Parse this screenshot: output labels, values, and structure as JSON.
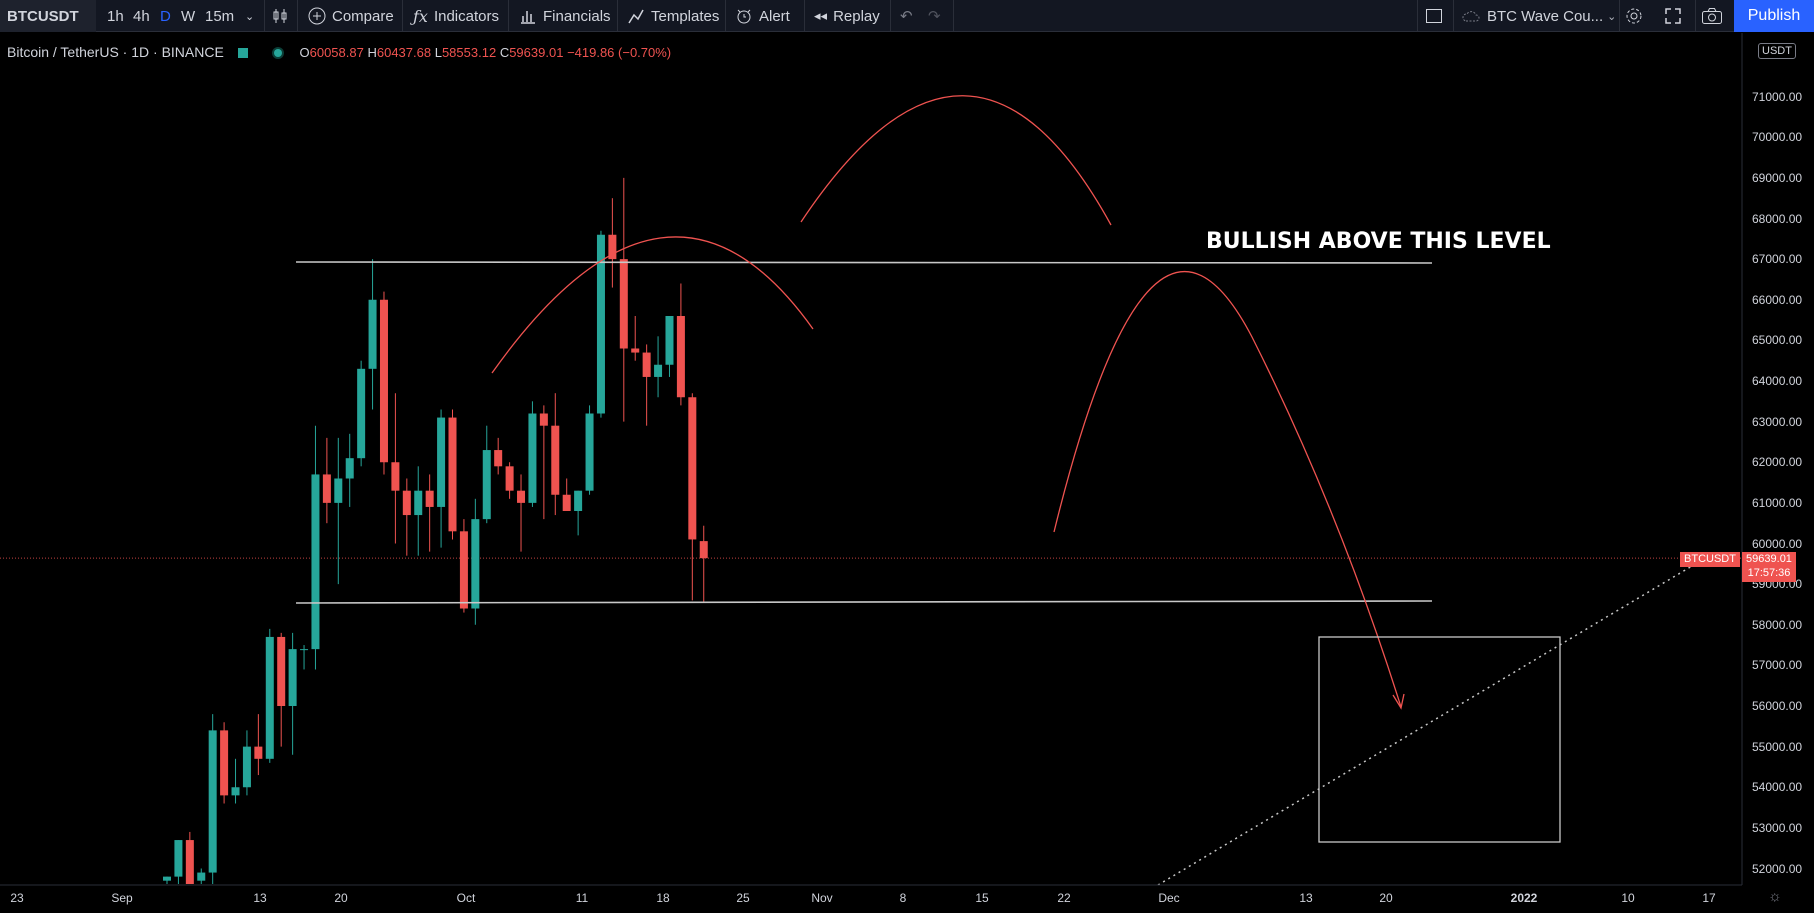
{
  "toolbar": {
    "symbol": "BTCUSDT",
    "intervals": [
      "1h",
      "4h",
      "D",
      "W",
      "15m"
    ],
    "active_interval": "D",
    "compare": "Compare",
    "indicators": "Indicators",
    "financials": "Financials",
    "templates": "Templates",
    "alert": "Alert",
    "replay": "Replay",
    "layout_name": "BTC Wave Cou...",
    "publish": "Publish"
  },
  "legend": {
    "title": "Bitcoin / TetherUS · 1D · BINANCE",
    "open_label": "O",
    "open": "60058.87",
    "high_label": "H",
    "high": "60437.68",
    "low_label": "L",
    "low": "58553.12",
    "close_label": "C",
    "close": "59639.01",
    "change": "−419.86 (−0.70%)"
  },
  "price_axis": {
    "currency": "USDT",
    "ticks": [
      "71000.00",
      "70000.00",
      "69000.00",
      "68000.00",
      "67000.00",
      "66000.00",
      "65000.00",
      "64000.00",
      "63000.00",
      "62000.00",
      "61000.00",
      "60000.00",
      "59000.00",
      "58000.00",
      "57000.00",
      "56000.00",
      "55000.00",
      "54000.00",
      "53000.00",
      "52000.00"
    ],
    "last_price": "59639.01",
    "countdown": "17:57:36",
    "symbol_tag": "BTCUSDT"
  },
  "time_axis": {
    "ticks": [
      "23",
      "Sep",
      "13",
      "20",
      "Oct",
      "11",
      "18",
      "25",
      "Nov",
      "8",
      "15",
      "22",
      "Dec",
      "13",
      "20",
      "2022",
      "10",
      "17"
    ]
  },
  "annotation": {
    "text": "BULLISH ABOVE THIS LEVEL"
  },
  "colors": {
    "up": "#26a69a",
    "down": "#ef5350",
    "accent": "#2962ff",
    "drawing": "#ef5350",
    "level_line": "#c8c8c8"
  },
  "chart_data": {
    "type": "candlestick",
    "symbol": "BTCUSDT",
    "interval": "1D",
    "ylim": [
      51600,
      72000
    ],
    "candles": [
      {
        "o": 51700,
        "h": 51800,
        "l": 51500,
        "c": 51800
      },
      {
        "o": 51800,
        "h": 52700,
        "l": 51600,
        "c": 52700
      },
      {
        "o": 52700,
        "h": 52900,
        "l": 51600,
        "c": 51600
      },
      {
        "o": 51700,
        "h": 52000,
        "l": 51500,
        "c": 51900
      },
      {
        "o": 51900,
        "h": 55800,
        "l": 51500,
        "c": 55400
      },
      {
        "o": 55400,
        "h": 55600,
        "l": 53600,
        "c": 53800
      },
      {
        "o": 53800,
        "h": 54700,
        "l": 53600,
        "c": 54000
      },
      {
        "o": 54000,
        "h": 55400,
        "l": 53800,
        "c": 55000
      },
      {
        "o": 55000,
        "h": 55800,
        "l": 54300,
        "c": 54700
      },
      {
        "o": 54700,
        "h": 57900,
        "l": 54600,
        "c": 57700
      },
      {
        "o": 57700,
        "h": 57800,
        "l": 55000,
        "c": 56000
      },
      {
        "o": 56000,
        "h": 57800,
        "l": 54800,
        "c": 57400
      },
      {
        "o": 57400,
        "h": 57500,
        "l": 56900,
        "c": 57400
      },
      {
        "o": 57400,
        "h": 62900,
        "l": 56900,
        "c": 61700
      },
      {
        "o": 61700,
        "h": 62600,
        "l": 60500,
        "c": 61000
      },
      {
        "o": 61000,
        "h": 62600,
        "l": 59000,
        "c": 61600
      },
      {
        "o": 61600,
        "h": 62700,
        "l": 60900,
        "c": 62100
      },
      {
        "o": 62100,
        "h": 64500,
        "l": 61900,
        "c": 64300
      },
      {
        "o": 64300,
        "h": 67000,
        "l": 63300,
        "c": 66000
      },
      {
        "o": 66000,
        "h": 66200,
        "l": 61700,
        "c": 62000
      },
      {
        "o": 62000,
        "h": 63700,
        "l": 60000,
        "c": 61300
      },
      {
        "o": 61300,
        "h": 61600,
        "l": 59700,
        "c": 60700
      },
      {
        "o": 60700,
        "h": 61900,
        "l": 59700,
        "c": 61300
      },
      {
        "o": 61300,
        "h": 61700,
        "l": 59800,
        "c": 60900
      },
      {
        "o": 60900,
        "h": 63300,
        "l": 59900,
        "c": 63100
      },
      {
        "o": 63100,
        "h": 63300,
        "l": 60100,
        "c": 60300
      },
      {
        "o": 60300,
        "h": 60600,
        "l": 58300,
        "c": 58400
      },
      {
        "o": 58400,
        "h": 61100,
        "l": 58000,
        "c": 60600
      },
      {
        "o": 60600,
        "h": 62900,
        "l": 60500,
        "c": 62300
      },
      {
        "o": 62300,
        "h": 62600,
        "l": 61700,
        "c": 61900
      },
      {
        "o": 61900,
        "h": 62000,
        "l": 61100,
        "c": 61300
      },
      {
        "o": 61300,
        "h": 61700,
        "l": 59800,
        "c": 61000
      },
      {
        "o": 61000,
        "h": 63500,
        "l": 60900,
        "c": 63200
      },
      {
        "o": 63200,
        "h": 63400,
        "l": 60600,
        "c": 62900
      },
      {
        "o": 62900,
        "h": 63700,
        "l": 60700,
        "c": 61200
      },
      {
        "o": 61200,
        "h": 61600,
        "l": 60800,
        "c": 60800
      },
      {
        "o": 60800,
        "h": 61300,
        "l": 60200,
        "c": 61300
      },
      {
        "o": 61300,
        "h": 63400,
        "l": 61200,
        "c": 63200
      },
      {
        "o": 63200,
        "h": 67700,
        "l": 63100,
        "c": 67600
      },
      {
        "o": 67600,
        "h": 68500,
        "l": 66300,
        "c": 67000
      },
      {
        "o": 67000,
        "h": 69000,
        "l": 63000,
        "c": 64800
      },
      {
        "o": 64800,
        "h": 65600,
        "l": 64500,
        "c": 64700
      },
      {
        "o": 64700,
        "h": 64900,
        "l": 62900,
        "c": 64100
      },
      {
        "o": 64100,
        "h": 65100,
        "l": 63600,
        "c": 64400
      },
      {
        "o": 64400,
        "h": 65600,
        "l": 64100,
        "c": 65600
      },
      {
        "o": 65600,
        "h": 66400,
        "l": 63400,
        "c": 63600
      },
      {
        "o": 63600,
        "h": 63700,
        "l": 58600,
        "c": 60100
      },
      {
        "o": 60058.87,
        "h": 60437.68,
        "l": 58553.12,
        "c": 59639.01
      }
    ],
    "horizontal_levels": [
      67000,
      58600
    ],
    "last_price": 59639.01
  }
}
